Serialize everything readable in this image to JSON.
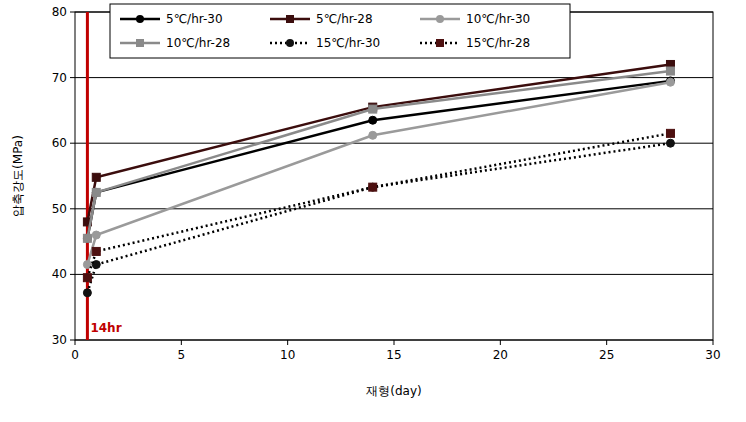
{
  "chart_data": {
    "type": "line",
    "x_label": "재형(day)",
    "y_label": "압축강도(MPa)",
    "x": [
      0.583,
      1,
      14,
      28
    ],
    "series": [
      {
        "name": "5℃/hr-30",
        "color": "#000000",
        "marker": "circle",
        "line_style": "solid",
        "values": [
          45.5,
          52.5,
          63.5,
          69.5
        ]
      },
      {
        "name": "5℃/hr-28",
        "color": "#3b0d0d",
        "marker": "square",
        "line_style": "solid",
        "values": [
          48,
          54.8,
          65.5,
          72
        ]
      },
      {
        "name": "10℃/hr-30",
        "color": "#9a9a9a",
        "marker": "circle",
        "line_style": "solid",
        "values": [
          41.5,
          46,
          61.2,
          69.3
        ]
      },
      {
        "name": "10℃/hr-28",
        "color": "#8a8a8a",
        "marker": "square",
        "line_style": "solid",
        "values": [
          45.5,
          52.5,
          65.2,
          71
        ]
      },
      {
        "name": "15℃/hr-30",
        "color": "#111111",
        "marker": "circle",
        "line_style": "dotted",
        "values": [
          37.2,
          41.5,
          53.3,
          60
        ]
      },
      {
        "name": "15℃/hr-28",
        "color": "#4d1010",
        "marker": "square",
        "line_style": "dotted",
        "values": [
          39.5,
          43.5,
          53.3,
          61.5
        ]
      }
    ],
    "annotations": [
      {
        "x": 0.583,
        "label": "14hr",
        "color": "#c00000"
      }
    ],
    "xlim": [
      0,
      30
    ],
    "xticks": [
      0,
      5,
      10,
      15,
      20,
      25,
      30
    ],
    "ylim": [
      30,
      80
    ],
    "yticks": [
      30,
      40,
      50,
      60,
      70,
      80
    ],
    "grid": true,
    "legend": "top"
  }
}
